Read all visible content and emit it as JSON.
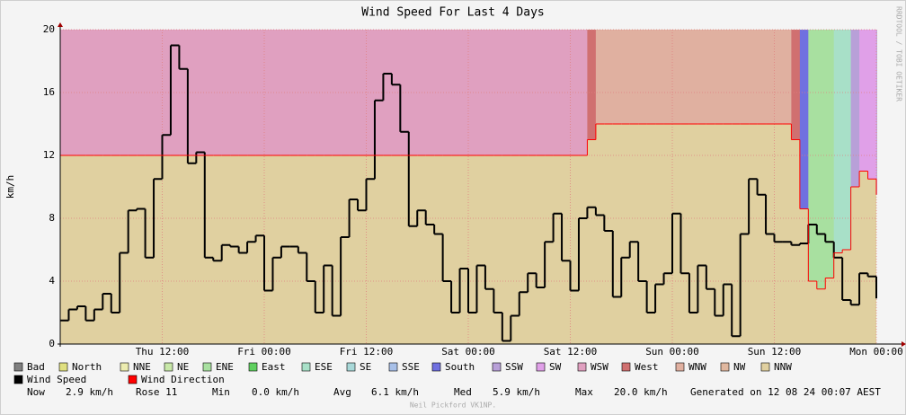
{
  "chart_data": {
    "type": "line",
    "title": "Wind Speed For Last 4 Days",
    "y_label": "km/h",
    "side_label": "RRDTOOL / TOBI OETIKER",
    "footer": "Neil Pickford VK1NP.",
    "xlim": [
      0,
      96
    ],
    "xticks": [
      {
        "value": 12,
        "label": "Thu 12:00"
      },
      {
        "value": 24,
        "label": "Fri 00:00"
      },
      {
        "value": 36,
        "label": "Fri 12:00"
      },
      {
        "value": 48,
        "label": "Sat 00:00"
      },
      {
        "value": 60,
        "label": "Sat 12:00"
      },
      {
        "value": 72,
        "label": "Sun 00:00"
      },
      {
        "value": 84,
        "label": "Sun 12:00"
      },
      {
        "value": 96,
        "label": "Mon 00:00"
      }
    ],
    "ylim": [
      0,
      20
    ],
    "yticks": [
      0,
      4,
      8,
      12,
      16,
      20
    ],
    "grid": true,
    "x": [
      0,
      1,
      2,
      3,
      4,
      5,
      6,
      7,
      8,
      9,
      10,
      11,
      12,
      13,
      14,
      15,
      16,
      17,
      18,
      19,
      20,
      21,
      22,
      23,
      24,
      25,
      26,
      27,
      28,
      29,
      30,
      31,
      32,
      33,
      34,
      35,
      36,
      37,
      38,
      39,
      40,
      41,
      42,
      43,
      44,
      45,
      46,
      47,
      48,
      49,
      50,
      51,
      52,
      53,
      54,
      55,
      56,
      57,
      58,
      59,
      60,
      61,
      62,
      63,
      64,
      65,
      66,
      67,
      68,
      69,
      70,
      71,
      72,
      73,
      74,
      75,
      76,
      77,
      78,
      79,
      80,
      81,
      82,
      83,
      84,
      85,
      86,
      87,
      88,
      89,
      90,
      91,
      92,
      93,
      94,
      95,
      96
    ],
    "series": [
      {
        "name": "Wind Speed",
        "color": "#000000",
        "values": [
          1.5,
          2.2,
          2.4,
          1.5,
          2.2,
          3.2,
          2.0,
          5.8,
          8.5,
          8.6,
          5.5,
          10.5,
          13.3,
          19.0,
          17.5,
          11.5,
          12.2,
          5.5,
          5.3,
          6.3,
          6.2,
          5.8,
          6.5,
          6.9,
          3.4,
          5.5,
          6.2,
          6.2,
          5.8,
          4.0,
          2.0,
          5.0,
          1.8,
          6.8,
          9.2,
          8.5,
          10.5,
          15.5,
          17.2,
          16.5,
          13.5,
          7.5,
          8.5,
          7.6,
          7.0,
          4.0,
          2.0,
          4.8,
          2.0,
          5.0,
          3.5,
          2.0,
          0.2,
          1.8,
          3.3,
          4.5,
          3.6,
          6.5,
          8.3,
          5.3,
          3.4,
          8.0,
          8.7,
          8.2,
          7.2,
          3.0,
          5.5,
          6.5,
          4.0,
          2.0,
          3.8,
          4.5,
          8.3,
          4.5,
          2.0,
          5.0,
          3.5,
          1.8,
          3.8,
          0.5,
          7.0,
          10.5,
          9.5,
          7.0,
          6.5,
          6.5,
          6.3,
          6.4,
          7.6,
          7.0,
          6.5,
          5.5,
          2.8,
          2.5,
          4.5,
          4.3,
          2.9
        ]
      },
      {
        "name": "Wind Direction",
        "color": "#ff0000",
        "values": [
          12,
          12,
          12,
          12,
          12,
          12,
          12,
          12,
          12,
          12,
          12,
          12,
          12,
          12,
          12,
          12,
          12,
          12,
          12,
          12,
          12,
          12,
          12,
          12,
          12,
          12,
          12,
          12,
          12,
          12,
          12,
          12,
          12,
          12,
          12,
          12,
          12,
          12,
          12,
          12,
          12,
          12,
          12,
          12,
          12,
          12,
          12,
          12,
          12,
          12,
          12,
          12,
          12,
          12,
          12,
          12,
          12,
          12,
          12,
          12,
          12,
          12,
          13,
          14,
          14,
          14,
          14,
          14,
          14,
          14,
          14,
          14,
          14,
          14,
          14,
          14,
          14,
          14,
          14,
          14,
          14,
          14,
          14,
          14,
          14,
          14,
          13,
          8.6,
          4,
          3.5,
          4.2,
          5.8,
          6,
          10,
          11,
          10.5,
          9.5
        ]
      }
    ],
    "directions": [
      {
        "name": "Bad",
        "color": "#808080"
      },
      {
        "name": "North",
        "color": "#e0e080"
      },
      {
        "name": "NNE",
        "color": "#ececb0"
      },
      {
        "name": "NE",
        "color": "#c8e8a8"
      },
      {
        "name": "ENE",
        "color": "#a8e0a0"
      },
      {
        "name": "East",
        "color": "#60d060"
      },
      {
        "name": "ESE",
        "color": "#a8e0c8"
      },
      {
        "name": "SE",
        "color": "#a8d8d8"
      },
      {
        "name": "SSE",
        "color": "#a8c0e8"
      },
      {
        "name": "South",
        "color": "#7070e0"
      },
      {
        "name": "SSW",
        "color": "#b8a0d8"
      },
      {
        "name": "SW",
        "color": "#e0a0e8"
      },
      {
        "name": "WSW",
        "color": "#e0a0c0"
      },
      {
        "name": "West",
        "color": "#d07070"
      },
      {
        "name": "WNW",
        "color": "#e0b0a0"
      },
      {
        "name": "NW",
        "color": "#e0b8a0"
      },
      {
        "name": "NNW",
        "color": "#e0d0a0"
      }
    ],
    "stats": [
      "Now",
      "2.9 km/h",
      "Rose 11",
      "Min",
      "0.0 km/h",
      "Avg",
      "6.1 km/h",
      "Med",
      "5.9 km/h",
      "Max",
      "20.0 km/h",
      "Generated on 12 08 24 00:07 AEST"
    ]
  }
}
